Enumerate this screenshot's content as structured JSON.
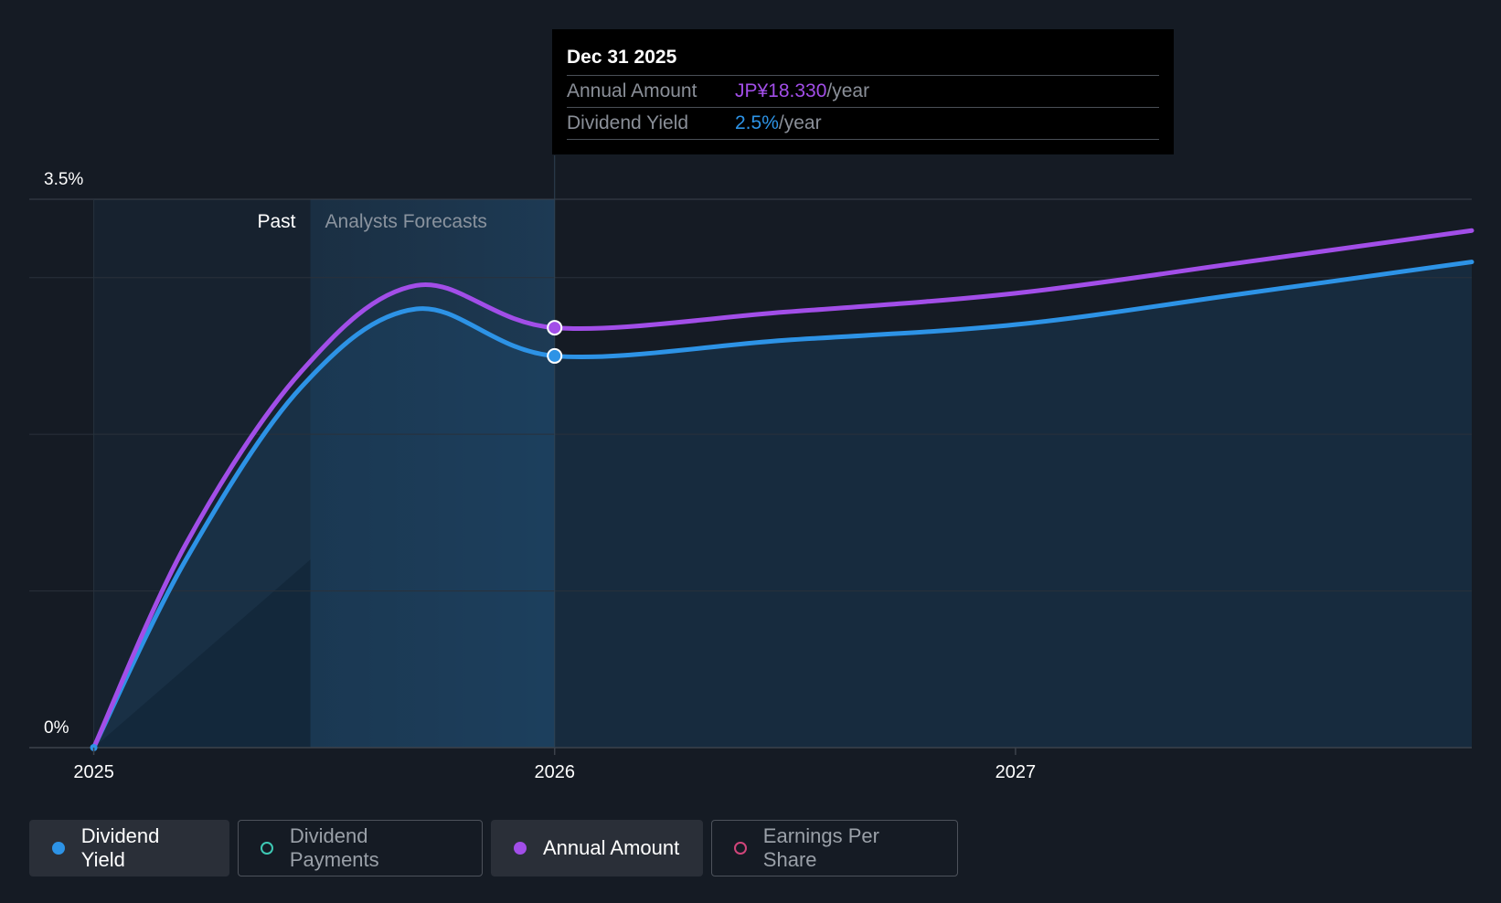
{
  "chart_data": {
    "type": "line",
    "x_ticks": [
      "2025",
      "2026",
      "2027"
    ],
    "y_ticks": [
      "3.5%",
      "0%"
    ],
    "ylim": [
      0,
      3.5
    ],
    "xlim": [
      2024.86,
      2027.99
    ],
    "regions": {
      "past_label": "Past",
      "forecast_label": "Analysts Forecasts",
      "past_end": 2025.47,
      "forecast_start": 2025.47,
      "highlight_end": 2026.0
    },
    "series": [
      {
        "name": "Dividend Yield",
        "color": "#2d93e6",
        "points": [
          [
            2025.0,
            0.0
          ],
          [
            2025.2,
            1.2
          ],
          [
            2025.45,
            2.3
          ],
          [
            2025.7,
            2.8
          ],
          [
            2026.0,
            2.5
          ],
          [
            2026.5,
            2.6
          ],
          [
            2027.0,
            2.7
          ],
          [
            2027.5,
            2.9
          ],
          [
            2027.99,
            3.1
          ]
        ]
      },
      {
        "name": "Annual Amount",
        "color": "#a24ee8",
        "points": [
          [
            2025.0,
            0.0
          ],
          [
            2025.2,
            1.3
          ],
          [
            2025.45,
            2.4
          ],
          [
            2025.7,
            2.95
          ],
          [
            2026.0,
            2.68
          ],
          [
            2026.5,
            2.78
          ],
          [
            2027.0,
            2.9
          ],
          [
            2027.5,
            3.1
          ],
          [
            2027.99,
            3.3
          ]
        ]
      }
    ],
    "highlight_x": 2026.0
  },
  "tooltip": {
    "date": "Dec 31 2025",
    "rows": [
      {
        "label": "Annual Amount",
        "value": "JP¥18.330",
        "unit": "/year",
        "color": "#a24ee8"
      },
      {
        "label": "Dividend Yield",
        "value": "2.5%",
        "unit": "/year",
        "color": "#2d93e6"
      }
    ]
  },
  "legend": [
    {
      "label": "Dividend Yield",
      "color": "#2d93e6",
      "active": true,
      "filled": true
    },
    {
      "label": "Dividend Payments",
      "color": "#3ec8b4",
      "active": false,
      "filled": false
    },
    {
      "label": "Annual Amount",
      "color": "#a24ee8",
      "active": true,
      "filled": true
    },
    {
      "label": "Earnings Per Share",
      "color": "#d0457a",
      "active": false,
      "filled": false
    }
  ]
}
